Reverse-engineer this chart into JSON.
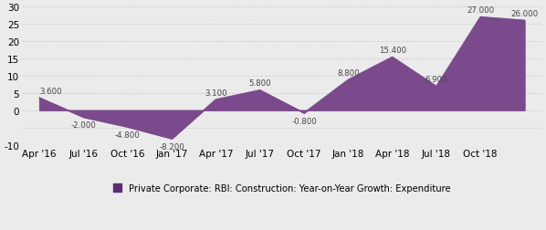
{
  "x_labels": [
    "Apr '16",
    "Jul '16",
    "Oct '16",
    "Jan '17",
    "Apr '17",
    "Jul '17",
    "Oct '17",
    "Jan '18",
    "Apr '18",
    "Jul '18",
    "Oct '18"
  ],
  "values": [
    3.6,
    -2.0,
    -4.8,
    -8.2,
    3.1,
    5.8,
    -0.8,
    8.8,
    15.4,
    6.9,
    27.0,
    26.0
  ],
  "x_positions": [
    0,
    1,
    2,
    3,
    4,
    5,
    6,
    7,
    8,
    9,
    10,
    11
  ],
  "x_tick_positions": [
    0,
    1,
    2,
    3,
    4,
    5,
    6,
    7,
    8,
    9,
    10
  ],
  "data_labels": [
    "3.600",
    "-2.000",
    "-4.800",
    "-8.200",
    "3.100",
    "5.800",
    "-0.800",
    "8.800",
    "15.400",
    "6.900",
    "27.000",
    "26.000"
  ],
  "fill_color": "#7B4A8C",
  "line_color": "#7B4A8C",
  "background_color": "#ebebeb",
  "grid_color": "#d0d0d0",
  "ylim": [
    -10,
    30
  ],
  "yticks": [
    -10,
    -5,
    0,
    5,
    10,
    15,
    20,
    25,
    30
  ],
  "ytick_labels": [
    "-10",
    "",
    "0",
    "5",
    "10",
    "15",
    "20",
    "25",
    "30"
  ],
  "legend_label": "Private Corporate: RBI: Construction: Year-on-Year Growth: Expenditure",
  "legend_color": "#5B2C6F",
  "label_offsets_y": [
    0.9,
    -1.1,
    -1.1,
    -1.1,
    0.9,
    0.9,
    -1.1,
    0.9,
    0.9,
    0.9,
    0.9,
    0.9
  ],
  "label_ha": [
    "left",
    "center",
    "center",
    "center",
    "center",
    "center",
    "center",
    "center",
    "center",
    "center",
    "center",
    "center"
  ]
}
